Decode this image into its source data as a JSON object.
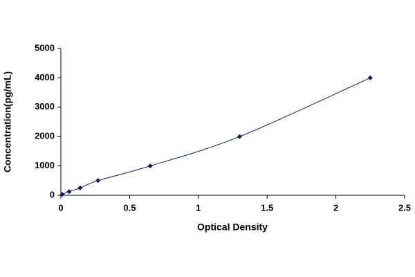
{
  "chart_data": {
    "type": "scatter-line",
    "x_label": "Optical Density",
    "y_label": "Concentration(pg/mL)",
    "x": [
      0.01,
      0.06,
      0.14,
      0.27,
      0.65,
      1.3,
      2.25
    ],
    "values": [
      31,
      125,
      250,
      500,
      1000,
      2000,
      4000
    ],
    "color": "#0a1a6e",
    "xlim": [
      0,
      2.5
    ],
    "xticks": [
      0,
      0.5,
      1,
      1.5,
      2,
      2.5
    ],
    "ylim": [
      0,
      5000
    ],
    "yticks": [
      0,
      1000,
      2000,
      3000,
      4000,
      5000
    ],
    "grid": false
  }
}
